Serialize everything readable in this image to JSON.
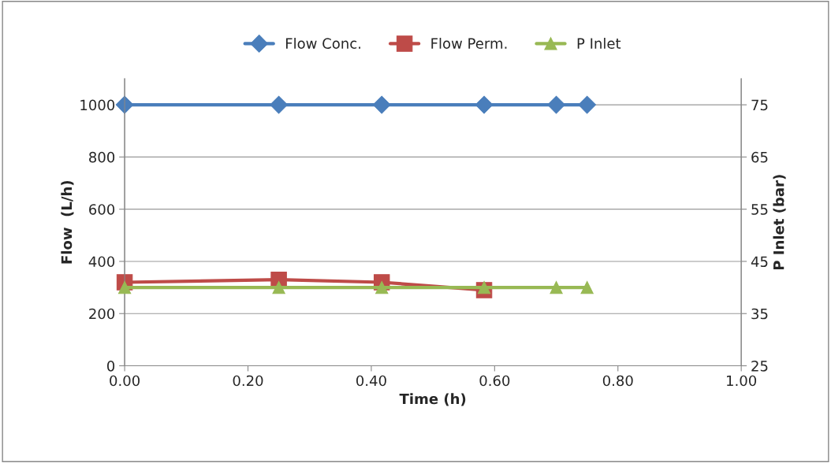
{
  "chart_data": {
    "type": "line",
    "xlabel": "Time (h)",
    "ylabel": "Flow  (L/h)",
    "y2label": "P Inlet (bar)",
    "xlim": [
      0,
      1
    ],
    "xticks": [
      {
        "value": 0,
        "label": "0.00"
      },
      {
        "value": 0.2,
        "label": "0.20"
      },
      {
        "value": 0.4,
        "label": "0.40"
      },
      {
        "value": 0.6,
        "label": "0.60"
      },
      {
        "value": 0.8,
        "label": "0.80"
      },
      {
        "value": 1,
        "label": "1.00"
      }
    ],
    "ylim": [
      0,
      1100
    ],
    "yticks": [
      0,
      200,
      400,
      600,
      800,
      1000
    ],
    "y2lim": [
      25,
      80
    ],
    "y2ticks": [
      25,
      35,
      45,
      55,
      65,
      75
    ],
    "grid": "y",
    "legend": "top",
    "series": [
      {
        "name": "Flow Conc.",
        "color": "#4a7ebb",
        "marker": "diamond",
        "x": [
          0,
          0.25,
          0.417,
          0.583,
          0.7,
          0.75
        ],
        "values": [
          1000,
          1000,
          1000,
          1000,
          1000,
          1000
        ]
      },
      {
        "name": "Flow Perm.",
        "color": "#be4b48",
        "marker": "square",
        "x": [
          0,
          0.25,
          0.417,
          0.583
        ],
        "values": [
          320,
          330,
          320,
          290
        ]
      },
      {
        "name": "P Inlet",
        "color": "#98b954",
        "marker": "triangle",
        "axis": "y2",
        "x": [
          0,
          0.25,
          0.417,
          0.583,
          0.7,
          0.75
        ],
        "values": [
          40,
          40,
          40,
          40,
          40,
          40
        ]
      }
    ]
  }
}
